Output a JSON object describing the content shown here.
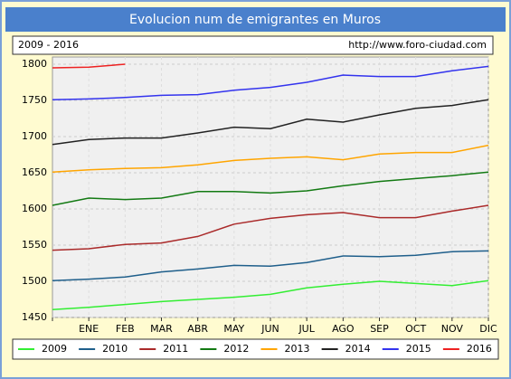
{
  "chart_data": {
    "type": "line",
    "title": "Evolucion num de emigrantes en Muros",
    "subtitle": "2009 - 2016",
    "source": "http://www.foro-ciudad.com",
    "categories": [
      null,
      "ENE",
      "FEB",
      "MAR",
      "ABR",
      "MAY",
      "JUN",
      "JUL",
      "AGO",
      "SEP",
      "OCT",
      "NOV",
      "DIC"
    ],
    "series": [
      {
        "name": "2009",
        "color": "#33ee33",
        "values": [
          1461,
          1464,
          1468,
          1472,
          1475,
          1478,
          1482,
          1491,
          1496,
          1500,
          1497,
          1494,
          1501
        ]
      },
      {
        "name": "2010",
        "color": "#1f5f8b",
        "values": [
          1501,
          1503,
          1506,
          1513,
          1517,
          1522,
          1521,
          1526,
          1535,
          1534,
          1536,
          1541,
          1542
        ]
      },
      {
        "name": "2011",
        "color": "#aa2a2a",
        "values": [
          1543,
          1545,
          1551,
          1553,
          1562,
          1579,
          1587,
          1592,
          1595,
          1588,
          1588,
          1597,
          1605
        ]
      },
      {
        "name": "2012",
        "color": "#137a13",
        "values": [
          1605,
          1615,
          1613,
          1615,
          1624,
          1624,
          1622,
          1625,
          1632,
          1638,
          1642,
          1646,
          1651
        ]
      },
      {
        "name": "2013",
        "color": "#ffa500",
        "values": [
          1651,
          1654,
          1656,
          1657,
          1661,
          1667,
          1670,
          1672,
          1668,
          1676,
          1678,
          1678,
          1688
        ]
      },
      {
        "name": "2014",
        "color": "#222222",
        "values": [
          1689,
          1696,
          1698,
          1698,
          1705,
          1713,
          1711,
          1724,
          1720,
          1730,
          1739,
          1743,
          1751
        ]
      },
      {
        "name": "2015",
        "color": "#3333ee",
        "values": [
          1751,
          1752,
          1754,
          1757,
          1758,
          1764,
          1768,
          1775,
          1785,
          1783,
          1783,
          1791,
          1797
        ]
      },
      {
        "name": "2016",
        "color": "#ee2222",
        "values": [
          1795,
          1796,
          1800,
          null,
          null,
          null,
          null,
          null,
          null,
          null,
          null,
          null,
          null
        ]
      }
    ],
    "ylim": [
      1450,
      1810
    ],
    "yticks": [
      1450,
      1500,
      1550,
      1600,
      1650,
      1700,
      1750,
      1800
    ],
    "grid": true
  }
}
